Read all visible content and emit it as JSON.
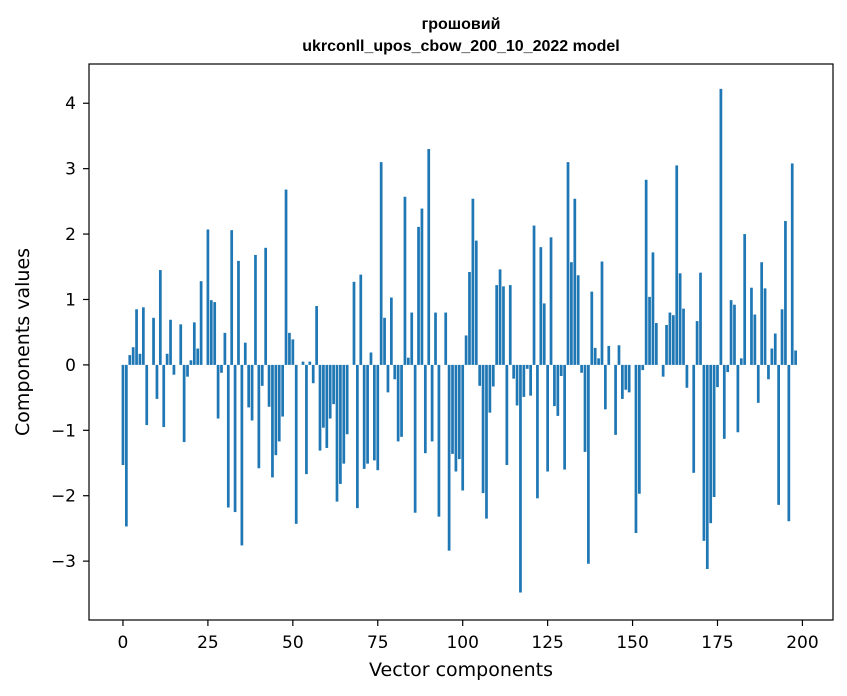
{
  "chart_data": {
    "type": "bar",
    "title": "грошовий",
    "subtitle": "ukrconll_upos_cbow_200_10_2022 model",
    "xlabel": "Vector components",
    "ylabel": "Components values",
    "xlim": [
      -10,
      209
    ],
    "ylim": [
      -3.9,
      4.6
    ],
    "xticks": [
      0,
      25,
      50,
      75,
      100,
      125,
      150,
      175,
      200
    ],
    "yticks": [
      -3,
      -2,
      -1,
      0,
      1,
      2,
      3,
      4
    ],
    "ytick_labels": [
      "−3",
      "−2",
      "−1",
      "0",
      "1",
      "2",
      "3",
      "4"
    ],
    "grid": false,
    "color": "#1f77b4",
    "x_start": 0,
    "values": [
      -1.53,
      -2.47,
      0.15,
      0.27,
      0.85,
      0.17,
      0.88,
      -0.92,
      0.0,
      0.72,
      -0.52,
      1.45,
      -0.95,
      0.17,
      0.69,
      -0.15,
      0.0,
      0.62,
      -1.18,
      -0.18,
      0.07,
      0.65,
      0.25,
      1.28,
      0.0,
      2.07,
      0.99,
      0.96,
      -0.82,
      -0.12,
      0.49,
      -2.18,
      2.06,
      -2.25,
      1.59,
      -2.76,
      0.34,
      -0.65,
      -0.85,
      1.68,
      -1.58,
      -0.32,
      1.79,
      -0.64,
      -1.72,
      -1.38,
      -1.17,
      -0.79,
      2.68,
      0.49,
      0.39,
      -2.43,
      0.0,
      0.05,
      -1.67,
      0.05,
      -0.28,
      0.9,
      -1.31,
      -0.96,
      -1.27,
      -0.82,
      -0.6,
      -2.09,
      -1.82,
      -1.51,
      -1.06,
      0.0,
      1.27,
      -2.19,
      1.38,
      -1.59,
      -1.51,
      0.19,
      -1.46,
      -1.61,
      3.1,
      0.72,
      -0.42,
      1.03,
      -0.22,
      -1.17,
      -1.1,
      2.57,
      0.11,
      0.8,
      -2.26,
      2.11,
      2.39,
      -1.35,
      3.3,
      -1.17,
      0.8,
      -2.32,
      0.0,
      0.8,
      -2.84,
      -1.36,
      -1.63,
      -1.44,
      -1.92,
      0.45,
      1.42,
      2.54,
      1.9,
      -0.32,
      -1.96,
      -2.35,
      -0.73,
      -0.33,
      1.22,
      1.46,
      1.2,
      -1.53,
      1.22,
      -0.21,
      -0.62,
      -3.48,
      -0.49,
      -0.06,
      -0.47,
      2.13,
      -2.04,
      1.8,
      0.94,
      -1.63,
      1.95,
      -0.63,
      -0.78,
      -0.17,
      -1.6,
      3.1,
      1.57,
      2.54,
      1.37,
      -0.12,
      -1.33,
      -3.04,
      1.12,
      0.26,
      0.1,
      1.58,
      -0.68,
      0.29,
      0.0,
      -1.07,
      0.3,
      -0.52,
      -0.38,
      -0.42,
      0.0,
      -2.57,
      -1.97,
      -0.08,
      2.83,
      1.04,
      1.72,
      0.64,
      0.0,
      -0.18,
      0.61,
      0.8,
      0.76,
      3.05,
      1.4,
      0.86,
      -0.35,
      0.0,
      -1.65,
      0.67,
      1.41,
      -2.69,
      -3.12,
      -2.42,
      -2.02,
      -0.34,
      4.22,
      -1.13,
      -0.11,
      0.99,
      0.92,
      -1.03,
      0.1,
      2.0,
      0.0,
      1.18,
      0.77,
      -0.58,
      1.57,
      1.17,
      -0.22,
      0.25,
      0.48,
      -2.14,
      0.85,
      2.2,
      -2.39,
      3.08,
      0.22
    ]
  }
}
